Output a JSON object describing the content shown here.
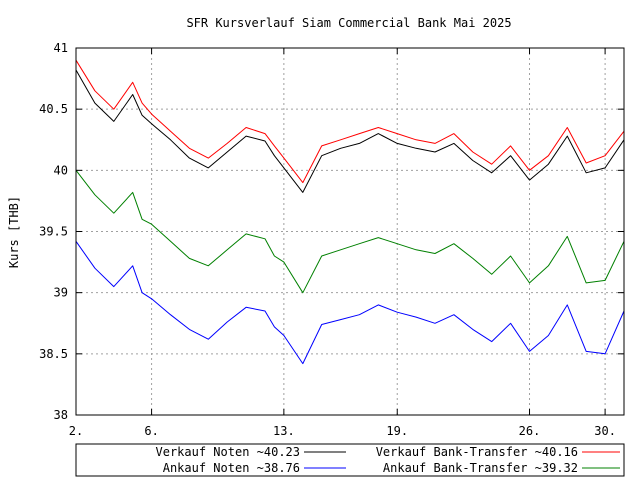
{
  "chart_data": {
    "type": "line",
    "title": "SFR Kursverlauf Siam Commercial Bank Mai 2025",
    "ylabel": "Kurs [THB]",
    "xlabel": "",
    "xlim": [
      2,
      31
    ],
    "ylim": [
      38,
      41
    ],
    "grid": true,
    "legend_position": "bottom",
    "x_ticks": [
      {
        "x": 2,
        "label": "2."
      },
      {
        "x": 6,
        "label": "6."
      },
      {
        "x": 13,
        "label": "13."
      },
      {
        "x": 19,
        "label": "19."
      },
      {
        "x": 26,
        "label": "26."
      },
      {
        "x": 30,
        "label": "30."
      }
    ],
    "y_ticks": [
      {
        "y": 38,
        "label": "38"
      },
      {
        "y": 38.5,
        "label": "38.5"
      },
      {
        "y": 39,
        "label": "39"
      },
      {
        "y": 39.5,
        "label": "39.5"
      },
      {
        "y": 40,
        "label": "40"
      },
      {
        "y": 40.5,
        "label": "40.5"
      },
      {
        "y": 41,
        "label": "41"
      }
    ],
    "x": [
      2,
      3,
      4,
      5,
      5.5,
      6,
      7,
      8,
      9,
      10,
      11,
      12,
      12.5,
      13,
      14,
      15,
      16,
      17,
      18,
      19,
      20,
      21,
      22,
      23,
      24,
      25,
      26,
      27,
      28,
      29,
      30,
      31
    ],
    "series": [
      {
        "name": "Verkauf Noten ~40.23",
        "color": "#000000",
        "values": [
          40.82,
          40.55,
          40.4,
          40.62,
          40.45,
          40.38,
          40.25,
          40.1,
          40.02,
          40.15,
          40.28,
          40.24,
          40.12,
          40.02,
          39.82,
          40.12,
          40.18,
          40.22,
          40.3,
          40.22,
          40.18,
          40.15,
          40.22,
          40.08,
          39.98,
          40.12,
          39.92,
          40.05,
          40.28,
          39.98,
          40.02,
          40.25
        ]
      },
      {
        "name": "Verkauf Bank-Transfer ~40.16",
        "color": "#ff0000",
        "values": [
          40.9,
          40.65,
          40.5,
          40.72,
          40.55,
          40.46,
          40.32,
          40.18,
          40.1,
          40.22,
          40.35,
          40.3,
          40.2,
          40.1,
          39.9,
          40.2,
          40.25,
          40.3,
          40.35,
          40.3,
          40.25,
          40.22,
          40.3,
          40.15,
          40.05,
          40.2,
          40.0,
          40.12,
          40.35,
          40.06,
          40.12,
          40.32
        ]
      },
      {
        "name": "Ankauf  Noten ~38.76",
        "color": "#0000ff",
        "values": [
          39.42,
          39.2,
          39.05,
          39.22,
          39.0,
          38.95,
          38.82,
          38.7,
          38.62,
          38.76,
          38.88,
          38.85,
          38.72,
          38.65,
          38.42,
          38.74,
          38.78,
          38.82,
          38.9,
          38.84,
          38.8,
          38.75,
          38.82,
          38.7,
          38.6,
          38.75,
          38.52,
          38.65,
          38.9,
          38.52,
          38.5,
          38.85
        ]
      },
      {
        "name": "Ankauf  Bank-Transfer ~39.32",
        "color": "#008000",
        "values": [
          40.0,
          39.8,
          39.65,
          39.82,
          39.6,
          39.56,
          39.42,
          39.28,
          39.22,
          39.35,
          39.48,
          39.44,
          39.3,
          39.25,
          39.0,
          39.3,
          39.35,
          39.4,
          39.45,
          39.4,
          39.35,
          39.32,
          39.4,
          39.28,
          39.15,
          39.3,
          39.08,
          39.22,
          39.46,
          39.08,
          39.1,
          39.42
        ]
      }
    ]
  }
}
